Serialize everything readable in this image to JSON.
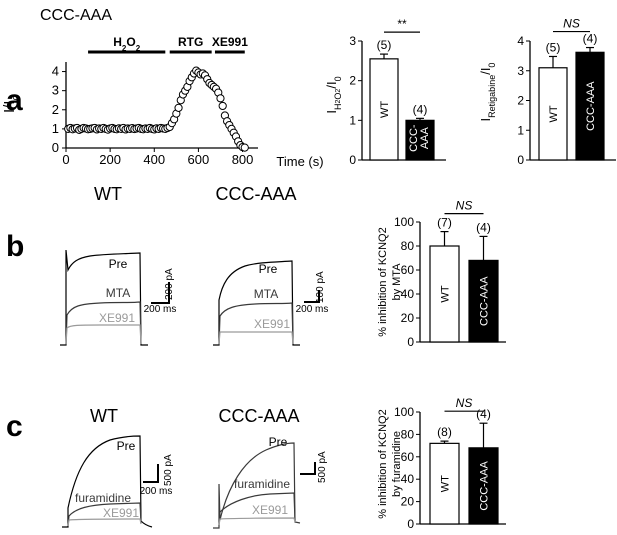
{
  "figure": {
    "panel_a": "a",
    "panel_b": "b",
    "panel_c": "c",
    "mutant_title": "CCC-AAA",
    "wt": "WT"
  },
  "colors": {
    "mta": "#3a3a3a",
    "xe991": "#9a9a9a",
    "black": "#000000",
    "white": "#ffffff"
  },
  "traces": {
    "b": {
      "wt": {
        "pre": "Pre",
        "mta": "MTA",
        "xe991": "XE991",
        "scale_current": "200 pA",
        "scale_time": "200 ms"
      },
      "mut": {
        "pre": "Pre",
        "mta": "MTA",
        "xe991": "XE991",
        "scale_current": "100 pA",
        "scale_time": "200 ms"
      }
    },
    "c": {
      "wt": {
        "pre": "Pre",
        "fur": "furamidine",
        "xe991": "XE991",
        "scale_current": "500 pA",
        "scale_time": "200 ms"
      },
      "mut": {
        "pre": "Pre",
        "fur": "furamidine",
        "xe991": "XE991",
        "scale_current": "500 pA",
        "scale_time": "200 ms"
      }
    }
  },
  "chart_data": [
    {
      "id": "a-time",
      "type": "scatter",
      "xlabel": "Time (s)",
      "ylabel": "I/I0",
      "xlim": [
        0,
        870
      ],
      "ylim": [
        0,
        4.5
      ],
      "xticks": [
        0,
        200,
        400,
        600,
        800
      ],
      "yticks": [
        0,
        1,
        2,
        3,
        4
      ],
      "bars": [
        {
          "label": "H2O2",
          "start": 100,
          "end": 450
        },
        {
          "label": "RTG",
          "start": 470,
          "end": 660
        },
        {
          "label": "XE991",
          "start": 675,
          "end": 810
        }
      ],
      "x": [
        10,
        20,
        30,
        40,
        50,
        60,
        70,
        80,
        90,
        100,
        110,
        120,
        130,
        140,
        150,
        160,
        170,
        180,
        190,
        200,
        210,
        220,
        230,
        240,
        250,
        260,
        270,
        280,
        290,
        300,
        310,
        320,
        330,
        340,
        350,
        360,
        370,
        380,
        390,
        400,
        410,
        420,
        430,
        440,
        450,
        460,
        470,
        480,
        490,
        500,
        510,
        520,
        530,
        540,
        550,
        560,
        570,
        580,
        590,
        600,
        610,
        620,
        630,
        640,
        650,
        660,
        670,
        680,
        690,
        700,
        710,
        720,
        730,
        740,
        750,
        760,
        770,
        780,
        790,
        800,
        810
      ],
      "y": [
        1.0,
        1.05,
        0.98,
        1.02,
        1.05,
        0.95,
        1.0,
        1.05,
        1.02,
        0.98,
        1.0,
        1.03,
        1.05,
        0.97,
        1.02,
        1.0,
        1.05,
        1.0,
        0.96,
        1.02,
        1.05,
        1.0,
        0.98,
        1.03,
        1.0,
        1.05,
        0.97,
        1.02,
        1.0,
        1.04,
        0.99,
        1.02,
        1.05,
        1.0,
        0.98,
        1.02,
        1.0,
        1.05,
        1.0,
        0.97,
        1.03,
        1.0,
        1.05,
        1.02,
        1.0,
        1.05,
        1.1,
        1.3,
        1.5,
        1.8,
        2.1,
        2.5,
        2.8,
        3.0,
        3.2,
        3.5,
        3.7,
        3.9,
        4.05,
        3.95,
        3.85,
        3.9,
        3.8,
        3.6,
        3.4,
        3.3,
        3.2,
        3.1,
        2.9,
        2.6,
        2.2,
        1.7,
        1.4,
        1.2,
        1.0,
        0.8,
        0.6,
        0.35,
        0.15,
        0.05,
        0.02
      ]
    },
    {
      "id": "a-h2o2",
      "type": "bar",
      "categories": [
        "WT",
        "CCC-AAA"
      ],
      "values": [
        2.55,
        1.0
      ],
      "errors": [
        0.12,
        0.05
      ],
      "n_labels": [
        "(5)",
        "(4)"
      ],
      "ylabel": "IH2O2/I0",
      "ylim": [
        0,
        3
      ],
      "yticks": [
        0,
        1,
        2,
        3
      ],
      "significance": "**"
    },
    {
      "id": "a-rtg",
      "type": "bar",
      "categories": [
        "WT",
        "CCC-AAA"
      ],
      "values": [
        3.1,
        3.62
      ],
      "errors": [
        0.38,
        0.16
      ],
      "n_labels": [
        "(5)",
        "(4)"
      ],
      "ylabel": "IRetigabine/I0",
      "ylim": [
        0,
        4
      ],
      "yticks": [
        0,
        1,
        2,
        3,
        4
      ],
      "significance": "NS"
    },
    {
      "id": "b-bar",
      "type": "bar",
      "categories": [
        "WT",
        "CCC-AAA"
      ],
      "values": [
        80,
        68
      ],
      "errors": [
        12,
        20
      ],
      "n_labels": [
        "(7)",
        "(4)"
      ],
      "ylabel": "% inhibition of KCNQ2",
      "ylabel2": "by MTA",
      "ylim": [
        0,
        100
      ],
      "yticks": [
        0,
        20,
        40,
        60,
        80,
        100
      ],
      "significance": "NS"
    },
    {
      "id": "c-bar",
      "type": "bar",
      "categories": [
        "WT",
        "CCC-AAA"
      ],
      "values": [
        72,
        68
      ],
      "errors": [
        2,
        22
      ],
      "n_labels": [
        "(8)",
        "(4)"
      ],
      "ylabel": "% inhibition of KCNQ2",
      "ylabel2": "by furamidine",
      "ylim": [
        0,
        100
      ],
      "yticks": [
        0,
        20,
        40,
        60,
        80,
        100
      ],
      "significance": "NS"
    }
  ]
}
